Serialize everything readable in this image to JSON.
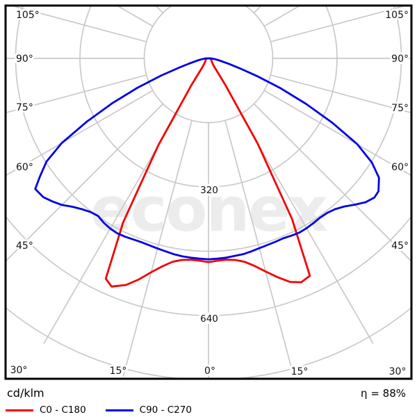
{
  "watermark_text": "econex",
  "legend": {
    "unit_label": "cd/klm",
    "efficiency_label": "η = 88%"
  },
  "colors": {
    "background": "#ffffff",
    "border": "#000000",
    "grid": "#c9c9c9",
    "watermark": "#ececec",
    "text": "#111111"
  },
  "chart_data": {
    "type": "polar_photometric_curve",
    "title": "Luminaire polar intensity diagram",
    "unit": "cd/klm",
    "efficiency_percent": 88,
    "gamma_axis": {
      "angle_step_deg": 15,
      "labels_left": [
        "105°",
        "90°",
        "75°",
        "60°",
        "45°"
      ],
      "labels_bottom": [
        "30°",
        "15°",
        "0°",
        "15°",
        "30°"
      ],
      "labels_right": [
        "105°",
        "90°",
        "75°",
        "60°",
        "45°"
      ]
    },
    "radial_axis": {
      "unit": "cd/klm",
      "ring_step": 160,
      "ring_values": [
        160,
        320,
        480,
        640,
        800
      ],
      "labeled_rings": [
        320,
        640
      ]
    },
    "series": [
      {
        "name": "C0 - C180",
        "color": "#f40000",
        "points": [
          [
            -105,
            0
          ],
          [
            -95,
            1
          ],
          [
            -90,
            2
          ],
          [
            -85,
            3
          ],
          [
            -80,
            4
          ],
          [
            -75,
            5
          ],
          [
            -70,
            6
          ],
          [
            -65,
            7
          ],
          [
            -60,
            8
          ],
          [
            -55,
            9
          ],
          [
            -50,
            10
          ],
          [
            -45,
            12
          ],
          [
            -40,
            16
          ],
          [
            -35,
            24
          ],
          [
            -32.5,
            80
          ],
          [
            -30,
            250
          ],
          [
            -27.5,
            460
          ],
          [
            -25,
            605
          ],
          [
            -23,
            617
          ],
          [
            -20,
            600
          ],
          [
            -17.5,
            577
          ],
          [
            -15,
            551
          ],
          [
            -12.5,
            530
          ],
          [
            -10,
            514
          ],
          [
            -7.5,
            506
          ],
          [
            -5,
            503
          ],
          [
            -2.5,
            504
          ],
          [
            0,
            507
          ],
          [
            2.5,
            504
          ],
          [
            5,
            503
          ],
          [
            7.5,
            506
          ],
          [
            10,
            514
          ],
          [
            12.5,
            529
          ],
          [
            15,
            549
          ],
          [
            17.5,
            571
          ],
          [
            20,
            592
          ],
          [
            22.5,
            603
          ],
          [
            25,
            597
          ],
          [
            27.5,
            450
          ],
          [
            30,
            245
          ],
          [
            32.5,
            75
          ],
          [
            35,
            22
          ],
          [
            40,
            15
          ],
          [
            45,
            12
          ],
          [
            50,
            10
          ],
          [
            55,
            9
          ],
          [
            60,
            8
          ],
          [
            65,
            7
          ],
          [
            70,
            6
          ],
          [
            75,
            5
          ],
          [
            80,
            4
          ],
          [
            85,
            3
          ],
          [
            90,
            2
          ],
          [
            95,
            1
          ],
          [
            105,
            0
          ]
        ]
      },
      {
        "name": "C90 - C270",
        "color": "#0000e6",
        "points": [
          [
            -105,
            0
          ],
          [
            -95,
            2
          ],
          [
            -90,
            6
          ],
          [
            -85,
            13
          ],
          [
            -80,
            25
          ],
          [
            -75,
            50
          ],
          [
            -72.5,
            78
          ],
          [
            -70,
            126
          ],
          [
            -67.5,
            192
          ],
          [
            -65,
            265
          ],
          [
            -62.5,
            342
          ],
          [
            -60,
            422
          ],
          [
            -57.5,
            478
          ],
          [
            -55,
            512
          ],
          [
            -53,
            540
          ],
          [
            -50,
            537
          ],
          [
            -47.5,
            527
          ],
          [
            -45,
            516
          ],
          [
            -42.5,
            501
          ],
          [
            -40,
            490
          ],
          [
            -37.5,
            482
          ],
          [
            -35,
            479
          ],
          [
            -32.5,
            485
          ],
          [
            -30,
            489
          ],
          [
            -27.5,
            491
          ],
          [
            -25,
            490
          ],
          [
            -22.5,
            488
          ],
          [
            -20,
            487
          ],
          [
            -17.5,
            488
          ],
          [
            -15,
            490
          ],
          [
            -12.5,
            492
          ],
          [
            -10,
            495
          ],
          [
            -7.5,
            497
          ],
          [
            -5,
            498
          ],
          [
            -2.5,
            499
          ],
          [
            0,
            500
          ],
          [
            2.5,
            499
          ],
          [
            5,
            498
          ],
          [
            7.5,
            496
          ],
          [
            10,
            495
          ],
          [
            12.5,
            492
          ],
          [
            15,
            489
          ],
          [
            17.5,
            487
          ],
          [
            20,
            486
          ],
          [
            22.5,
            485
          ],
          [
            25,
            487
          ],
          [
            27.5,
            489
          ],
          [
            30,
            488
          ],
          [
            32.5,
            486
          ],
          [
            35,
            484
          ],
          [
            37.5,
            485
          ],
          [
            40,
            490
          ],
          [
            42.5,
            500
          ],
          [
            45,
            515
          ],
          [
            47.5,
            530
          ],
          [
            50,
            539
          ],
          [
            52,
            537
          ],
          [
            55,
            518
          ],
          [
            57.5,
            482
          ],
          [
            60,
            428
          ],
          [
            62.5,
            348
          ],
          [
            65,
            268
          ],
          [
            67.5,
            194
          ],
          [
            70,
            128
          ],
          [
            72.5,
            80
          ],
          [
            75,
            51
          ],
          [
            80,
            25
          ],
          [
            85,
            13
          ],
          [
            90,
            6
          ],
          [
            95,
            2
          ],
          [
            105,
            0
          ]
        ]
      }
    ]
  }
}
